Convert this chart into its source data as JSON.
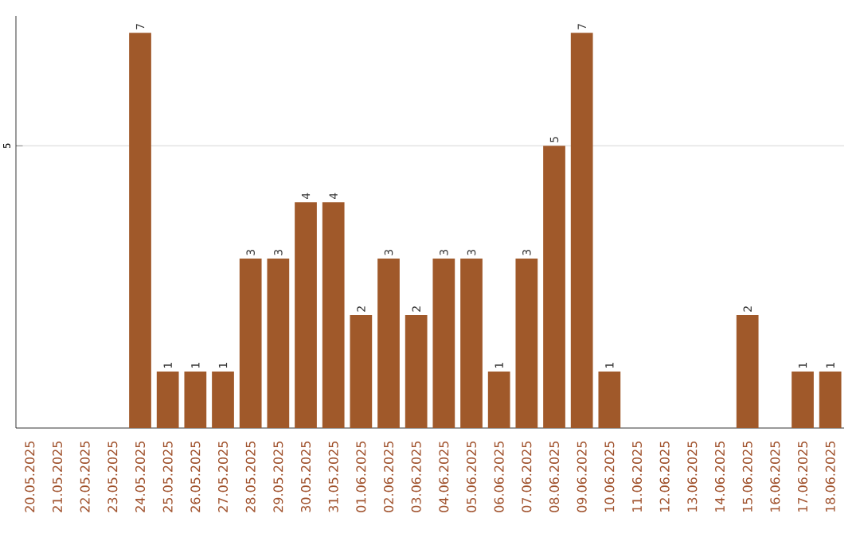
{
  "chart_data": {
    "type": "bar",
    "categories": [
      "20.05.2025",
      "21.05.2025",
      "22.05.2025",
      "23.05.2025",
      "24.05.2025",
      "25.05.2025",
      "26.05.2025",
      "27.05.2025",
      "28.05.2025",
      "29.05.2025",
      "30.05.2025",
      "31.05.2025",
      "01.06.2025",
      "02.06.2025",
      "03.06.2025",
      "04.06.2025",
      "05.06.2025",
      "06.06.2025",
      "07.06.2025",
      "08.06.2025",
      "09.06.2025",
      "10.06.2025",
      "11.06.2025",
      "12.06.2025",
      "13.06.2025",
      "14.06.2025",
      "15.06.2025",
      "16.06.2025",
      "17.06.2025",
      "18.06.2025"
    ],
    "values": [
      null,
      null,
      null,
      null,
      7,
      1,
      1,
      1,
      3,
      3,
      4,
      4,
      2,
      3,
      2,
      3,
      3,
      1,
      3,
      5,
      7,
      1,
      null,
      null,
      null,
      null,
      2,
      null,
      1,
      1
    ],
    "color": "#a0592a",
    "ylim": [
      0,
      7.3
    ],
    "yticks": [
      5
    ],
    "grid": "y",
    "data_labels": true
  }
}
